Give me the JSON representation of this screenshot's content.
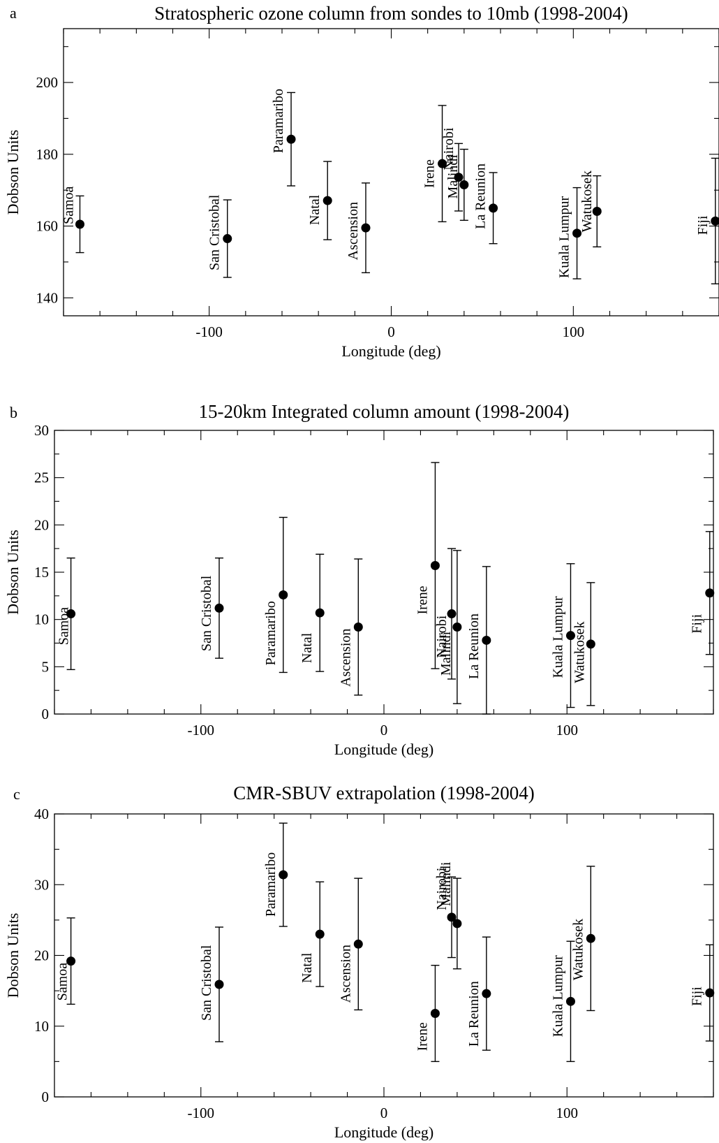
{
  "chart_data": [
    {
      "type": "scatter",
      "panel": "a",
      "title": "Stratospheric ozone column from sondes to 10mb (1998-2004)",
      "xlabel": "Longitude (deg)",
      "ylabel": "Dobson Units",
      "xlim": [
        -180,
        180
      ],
      "ylim": [
        135,
        215
      ],
      "xticks": [
        -100,
        0,
        100
      ],
      "xtick_labels": [
        "-100",
        "0",
        "100"
      ],
      "yticks": [
        140,
        160,
        180,
        200
      ],
      "ytick_labels": [
        "140",
        "160",
        "180",
        "200"
      ],
      "points": [
        {
          "site": "Samoa",
          "x": -171,
          "y": 160.5,
          "yerr_low": 152.6,
          "yerr_high": 168.4
        },
        {
          "site": "San Cristobal",
          "x": -90,
          "y": 156.5,
          "yerr_low": 145.7,
          "yerr_high": 167.3
        },
        {
          "site": "Paramaribo",
          "x": -55,
          "y": 184.2,
          "yerr_low": 171.2,
          "yerr_high": 197.2
        },
        {
          "site": "Natal",
          "x": -35,
          "y": 167.1,
          "yerr_low": 156.2,
          "yerr_high": 178.0
        },
        {
          "site": "Ascension",
          "x": -14,
          "y": 159.5,
          "yerr_low": 147.0,
          "yerr_high": 172.0
        },
        {
          "site": "Irene",
          "x": 28,
          "y": 177.4,
          "yerr_low": 161.2,
          "yerr_high": 193.6
        },
        {
          "site": "Nairobi",
          "x": 37,
          "y": 173.6,
          "yerr_low": 164.2,
          "yerr_high": 183.0
        },
        {
          "site": "Malindi",
          "x": 40,
          "y": 171.5,
          "yerr_low": 161.6,
          "yerr_high": 181.4
        },
        {
          "site": "La Reunion",
          "x": 56,
          "y": 165.0,
          "yerr_low": 155.1,
          "yerr_high": 174.9
        },
        {
          "site": "Kuala Lumpur",
          "x": 102,
          "y": 158.0,
          "yerr_low": 145.3,
          "yerr_high": 170.7
        },
        {
          "site": "Watukosek",
          "x": 113,
          "y": 164.1,
          "yerr_low": 154.2,
          "yerr_high": 174.0
        },
        {
          "site": "Fiji",
          "x": 178,
          "y": 161.4,
          "yerr_low": 143.9,
          "yerr_high": 178.9
        }
      ]
    },
    {
      "type": "scatter",
      "panel": "b",
      "title": "15-20km Integrated column amount (1998-2004)",
      "xlabel": "Longitude (deg)",
      "ylabel": "Dobson Units",
      "xlim": [
        -180,
        180
      ],
      "ylim": [
        0,
        30
      ],
      "xticks": [
        -100,
        0,
        100
      ],
      "xtick_labels": [
        "-100",
        "0",
        "100"
      ],
      "yticks": [
        0,
        5,
        10,
        15,
        20,
        25,
        30
      ],
      "ytick_labels": [
        "0",
        "5",
        "10",
        "15",
        "20",
        "25",
        "30"
      ],
      "points": [
        {
          "site": "Samoa",
          "x": -171,
          "y": 10.6,
          "yerr_low": 4.7,
          "yerr_high": 16.5
        },
        {
          "site": "San Cristobal",
          "x": -90,
          "y": 11.2,
          "yerr_low": 5.9,
          "yerr_high": 16.5
        },
        {
          "site": "Paramaribo",
          "x": -55,
          "y": 12.6,
          "yerr_low": 4.4,
          "yerr_high": 20.8
        },
        {
          "site": "Natal",
          "x": -35,
          "y": 10.7,
          "yerr_low": 4.5,
          "yerr_high": 16.9
        },
        {
          "site": "Ascension",
          "x": -14,
          "y": 9.2,
          "yerr_low": 2.0,
          "yerr_high": 16.4
        },
        {
          "site": "Irene",
          "x": 28,
          "y": 15.7,
          "yerr_low": 4.8,
          "yerr_high": 26.6
        },
        {
          "site": "Nairobi",
          "x": 37,
          "y": 10.6,
          "yerr_low": 3.7,
          "yerr_high": 17.5
        },
        {
          "site": "Malindi",
          "x": 40,
          "y": 9.2,
          "yerr_low": 1.1,
          "yerr_high": 17.3
        },
        {
          "site": "La Reunion",
          "x": 56,
          "y": 7.8,
          "yerr_low": 0,
          "yerr_high": 15.6
        },
        {
          "site": "Kuala Lumpur",
          "x": 102,
          "y": 8.3,
          "yerr_low": 0.7,
          "yerr_high": 15.9
        },
        {
          "site": "Watukosek",
          "x": 113,
          "y": 7.4,
          "yerr_low": 0.9,
          "yerr_high": 13.9
        },
        {
          "site": "Fiji",
          "x": 178,
          "y": 12.8,
          "yerr_low": 6.3,
          "yerr_high": 19.3
        }
      ]
    },
    {
      "type": "scatter",
      "panel": "c",
      "title": "CMR-SBUV extrapolation (1998-2004)",
      "xlabel": "Longitude (deg)",
      "ylabel": "Dobson Units",
      "xlim": [
        -180,
        180
      ],
      "ylim": [
        0,
        40
      ],
      "xticks": [
        -100,
        0,
        100
      ],
      "xtick_labels": [
        "-100",
        "0",
        "100"
      ],
      "yticks": [
        0,
        10,
        20,
        30,
        40
      ],
      "ytick_labels": [
        "0",
        "10",
        "20",
        "30",
        "40"
      ],
      "points": [
        {
          "site": "Samoa",
          "x": -171,
          "y": 19.2,
          "yerr_low": 13.1,
          "yerr_high": 25.3
        },
        {
          "site": "San Cristobal",
          "x": -90,
          "y": 15.9,
          "yerr_low": 7.8,
          "yerr_high": 24.0
        },
        {
          "site": "Paramaribo",
          "x": -55,
          "y": 31.4,
          "yerr_low": 24.1,
          "yerr_high": 38.7
        },
        {
          "site": "Natal",
          "x": -35,
          "y": 23.0,
          "yerr_low": 15.6,
          "yerr_high": 30.4
        },
        {
          "site": "Ascension",
          "x": -14,
          "y": 21.6,
          "yerr_low": 12.3,
          "yerr_high": 30.9
        },
        {
          "site": "Irene",
          "x": 28,
          "y": 11.8,
          "yerr_low": 5.0,
          "yerr_high": 18.6
        },
        {
          "site": "Nairobi",
          "x": 37,
          "y": 25.4,
          "yerr_low": 19.7,
          "yerr_high": 31.1
        },
        {
          "site": "Malindi",
          "x": 40,
          "y": 24.5,
          "yerr_low": 18.1,
          "yerr_high": 30.9
        },
        {
          "site": "La Reunion",
          "x": 56,
          "y": 14.6,
          "yerr_low": 6.6,
          "yerr_high": 22.6
        },
        {
          "site": "Kuala Lumpur",
          "x": 102,
          "y": 13.5,
          "yerr_low": 5.0,
          "yerr_high": 22.0
        },
        {
          "site": "Watukosek",
          "x": 113,
          "y": 22.4,
          "yerr_low": 12.2,
          "yerr_high": 32.6
        },
        {
          "site": "Fiji",
          "x": 178,
          "y": 14.7,
          "yerr_low": 7.9,
          "yerr_high": 21.5
        }
      ]
    }
  ]
}
